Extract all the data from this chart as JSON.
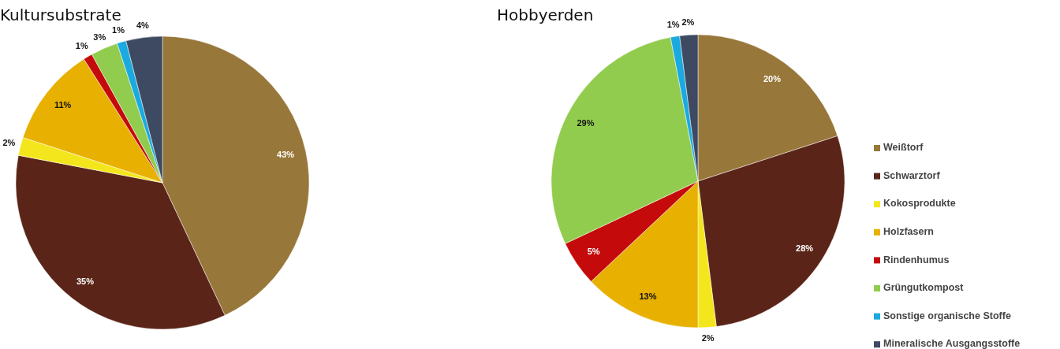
{
  "chart_data": [
    {
      "type": "pie",
      "title": "Kultursubstrate",
      "categories": [
        null,
        null,
        null,
        null,
        null,
        null,
        null,
        null
      ],
      "values": [
        43,
        35,
        2,
        11,
        1,
        3,
        1,
        4
      ],
      "value_labels": [
        "43%",
        "35%",
        "2%",
        "11%",
        "1%",
        "3%",
        "1%",
        "4%"
      ],
      "colors": [
        "#98773a",
        "#5a2518",
        "#f4e61c",
        "#e8b000",
        "#c40a0a",
        "#92cc4e",
        "#1aaae0",
        "#3e4a62"
      ],
      "legend": false
    },
    {
      "type": "pie",
      "title": "Hobbyerden",
      "categories": [
        "Weißtorf",
        "Schwarztorf",
        "Kokosprodukte",
        "Holzfasern",
        "Rindenhumus",
        "Grüngutkompost",
        "Sonstige organische Stoffe",
        "Mineralische Ausgangsstoffe"
      ],
      "values": [
        20,
        28,
        2,
        13,
        5,
        29,
        1,
        2
      ],
      "value_labels": [
        "20%",
        "28%",
        "2%",
        "13%",
        "5%",
        "29%",
        "1%",
        "2%"
      ],
      "colors": [
        "#98773a",
        "#5a2518",
        "#f4e61c",
        "#e8b000",
        "#c40a0a",
        "#92cc4e",
        "#1aaae0",
        "#3e4a62"
      ],
      "legend": "right"
    }
  ]
}
